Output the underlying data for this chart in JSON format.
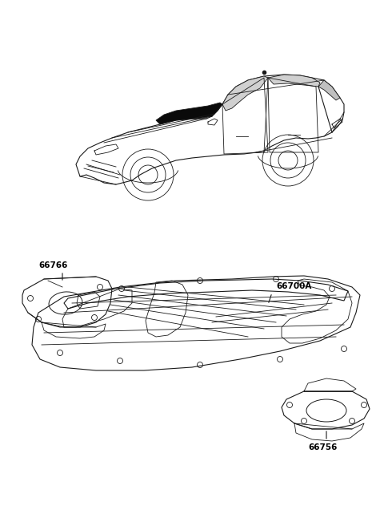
{
  "bg_color": "#ffffff",
  "line_color": "#1a1a1a",
  "figsize": [
    4.8,
    6.56
  ],
  "dpi": 100,
  "labels": {
    "66766": [
      0.095,
      0.618
    ],
    "66700A": [
      0.538,
      0.535
    ],
    "66756": [
      0.72,
      0.365
    ]
  },
  "label_fontsize": 7.5
}
